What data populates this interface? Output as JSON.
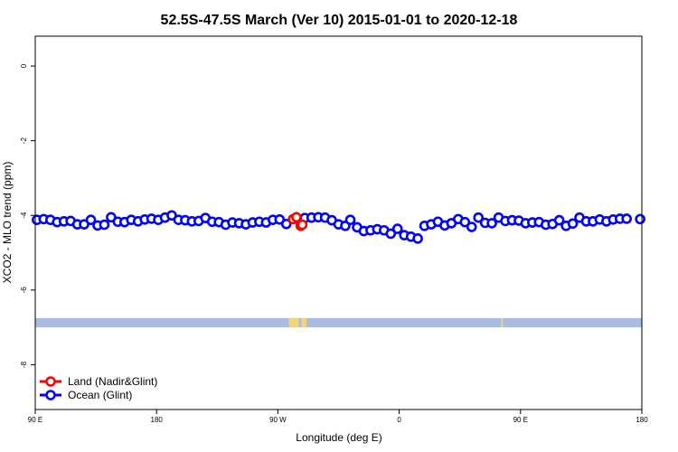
{
  "chart_data": {
    "type": "scatter",
    "title": "52.5S-47.5S March (Ver 10)   2015-01-01 to 2020-12-18",
    "xlabel": "Longitude (deg E)",
    "ylabel": "XCO2 - MLO trend (ppm)",
    "xlim": [
      90,
      450
    ],
    "ylim": [
      -9.2,
      0.8
    ],
    "x_ticks": [
      {
        "value": 90,
        "label": "90 E"
      },
      {
        "value": 162,
        "label": "180"
      },
      {
        "value": 234,
        "label": "90 W"
      },
      {
        "value": 306,
        "label": "0"
      },
      {
        "value": 378,
        "label": "90 E"
      },
      {
        "value": 450,
        "label": "180"
      }
    ],
    "y_ticks": [
      0,
      -2,
      -4,
      -6,
      -8
    ],
    "map_band": {
      "y_range": [
        -7.0,
        -6.75
      ],
      "color": "#a8bde0",
      "land_color": "#f2d47a",
      "land_x": [
        [
          240.5,
          246.5
        ],
        [
          248,
          251
        ],
        [
          366.5,
          367.5
        ]
      ]
    },
    "series": [
      {
        "name": "Land (Nadir&Glint)",
        "color": "#ff0000",
        "points": [
          [
            243,
            -4.1
          ],
          [
            245,
            -4.05
          ],
          [
            247.5,
            -4.28
          ],
          [
            248.5,
            -4.25
          ]
        ]
      },
      {
        "name": "Ocean (Glint)",
        "color": "#0000ff",
        "points": [
          [
            91,
            -4.12
          ],
          [
            95,
            -4.1
          ],
          [
            99,
            -4.12
          ],
          [
            103,
            -4.18
          ],
          [
            107,
            -4.16
          ],
          [
            111,
            -4.15
          ],
          [
            115,
            -4.24
          ],
          [
            119,
            -4.24
          ],
          [
            123,
            -4.12
          ],
          [
            127,
            -4.27
          ],
          [
            131,
            -4.25
          ],
          [
            135,
            -4.05
          ],
          [
            139,
            -4.17
          ],
          [
            143,
            -4.18
          ],
          [
            147,
            -4.12
          ],
          [
            151,
            -4.16
          ],
          [
            155,
            -4.11
          ],
          [
            159,
            -4.09
          ],
          [
            163,
            -4.12
          ],
          [
            167,
            -4.06
          ],
          [
            171,
            -4.0
          ],
          [
            175,
            -4.12
          ],
          [
            179,
            -4.13
          ],
          [
            183,
            -4.16
          ],
          [
            187,
            -4.15
          ],
          [
            191,
            -4.07
          ],
          [
            195,
            -4.17
          ],
          [
            199,
            -4.18
          ],
          [
            203,
            -4.25
          ],
          [
            207,
            -4.19
          ],
          [
            211,
            -4.21
          ],
          [
            215,
            -4.24
          ],
          [
            219,
            -4.19
          ],
          [
            223,
            -4.17
          ],
          [
            227,
            -4.19
          ],
          [
            231,
            -4.12
          ],
          [
            235,
            -4.11
          ],
          [
            239,
            -4.23
          ],
          [
            246,
            -4.1
          ],
          [
            250,
            -4.07
          ],
          [
            254,
            -4.06
          ],
          [
            258,
            -4.05
          ],
          [
            262,
            -4.06
          ],
          [
            266,
            -4.13
          ],
          [
            270,
            -4.24
          ],
          [
            274,
            -4.28
          ],
          [
            277,
            -4.12
          ],
          [
            281,
            -4.32
          ],
          [
            285,
            -4.42
          ],
          [
            289,
            -4.4
          ],
          [
            293,
            -4.37
          ],
          [
            297,
            -4.4
          ],
          [
            301,
            -4.49
          ],
          [
            305,
            -4.36
          ],
          [
            309,
            -4.53
          ],
          [
            313,
            -4.57
          ],
          [
            317,
            -4.62
          ],
          [
            321,
            -4.28
          ],
          [
            325,
            -4.24
          ],
          [
            329,
            -4.17
          ],
          [
            333,
            -4.27
          ],
          [
            337,
            -4.21
          ],
          [
            341,
            -4.1
          ],
          [
            345,
            -4.18
          ],
          [
            349,
            -4.31
          ],
          [
            353,
            -4.06
          ],
          [
            357,
            -4.2
          ],
          [
            361,
            -4.21
          ],
          [
            365,
            -4.06
          ],
          [
            369,
            -4.15
          ],
          [
            373,
            -4.13
          ],
          [
            377,
            -4.14
          ],
          [
            381,
            -4.21
          ],
          [
            385,
            -4.19
          ],
          [
            389,
            -4.18
          ],
          [
            393,
            -4.25
          ],
          [
            397,
            -4.23
          ],
          [
            401,
            -4.13
          ],
          [
            405,
            -4.28
          ],
          [
            409,
            -4.22
          ],
          [
            413,
            -4.06
          ],
          [
            417,
            -4.16
          ],
          [
            421,
            -4.16
          ],
          [
            425,
            -4.11
          ],
          [
            429,
            -4.16
          ],
          [
            433,
            -4.11
          ],
          [
            437,
            -4.09
          ],
          [
            441,
            -4.09
          ],
          [
            449,
            -4.1
          ]
        ]
      }
    ],
    "legend_position": "bottom-left"
  }
}
